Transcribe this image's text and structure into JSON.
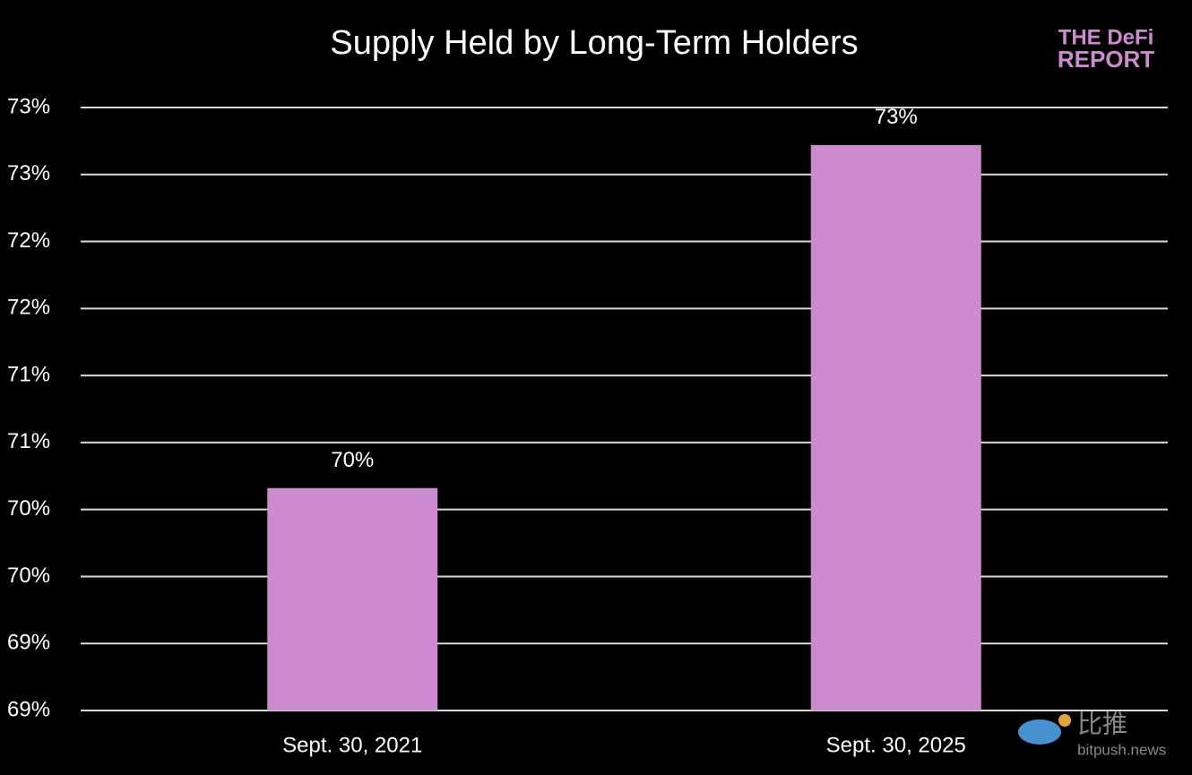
{
  "chart_data": {
    "type": "bar",
    "title": "Supply Held by Long-Term Holders",
    "categories": [
      "Sept. 30, 2021",
      "Sept. 30, 2025"
    ],
    "values": [
      70.26,
      72.82
    ],
    "value_labels": [
      "70%",
      "73%"
    ],
    "color": "#cd8bcf",
    "ylim": [
      68.6,
      73.1
    ],
    "yticks": [
      {
        "value": 68.6,
        "label": "69%"
      },
      {
        "value": 69.1,
        "label": "69%"
      },
      {
        "value": 69.6,
        "label": "70%"
      },
      {
        "value": 70.1,
        "label": "70%"
      },
      {
        "value": 70.6,
        "label": "71%"
      },
      {
        "value": 71.1,
        "label": "71%"
      },
      {
        "value": 71.6,
        "label": "72%"
      },
      {
        "value": 72.1,
        "label": "72%"
      },
      {
        "value": 72.6,
        "label": "73%"
      },
      {
        "value": 73.1,
        "label": "73%"
      }
    ],
    "grid": true
  },
  "logo": {
    "line1": "THE DeFi",
    "line2": "REPORT"
  },
  "watermark": {
    "brand": "比推",
    "site": "bitpush.news"
  }
}
